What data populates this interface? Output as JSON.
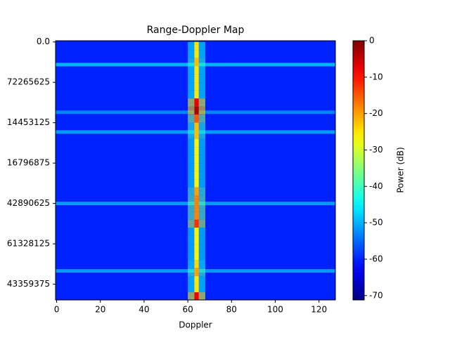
{
  "chart_data": {
    "type": "heatmap",
    "title": "Range-Doppler Map",
    "x_label": "Doppler",
    "colorbar_label": "Power (dB)",
    "xlim": [
      -0.5,
      127.5
    ],
    "xticks": [
      0,
      20,
      40,
      60,
      80,
      100,
      120
    ],
    "ylim": [
      -0.03,
      6.39
    ],
    "y_inverted": true,
    "yticks": [
      {
        "value": 0,
        "label": "0.0"
      },
      {
        "value": 1,
        "label": "72265625"
      },
      {
        "value": 2,
        "label": "14453125"
      },
      {
        "value": 3,
        "label": "16796875"
      },
      {
        "value": 4,
        "label": "42890625"
      },
      {
        "value": 5,
        "label": "61328125"
      },
      {
        "value": 6,
        "label": "43359375"
      }
    ],
    "clim": [
      -71.2,
      0
    ],
    "cticks": [
      0,
      -10,
      -20,
      -30,
      -40,
      -50,
      -60,
      -70
    ],
    "colormap": "jet",
    "background": -60,
    "stripe": {
      "x": 64,
      "width": 2,
      "range_bins": [
        0,
        0.2,
        0.4,
        0.6,
        0.8,
        1,
        1.2,
        1.4,
        1.6,
        1.8,
        2,
        2.2,
        2.4,
        2.6,
        2.8,
        3,
        3.2,
        3.4,
        3.6,
        3.8,
        4,
        4.2,
        4.4,
        4.6,
        4.8,
        5,
        5.2,
        5.4,
        5.6,
        5.8,
        6,
        6.2,
        6.39
      ],
      "values": [
        -25,
        -25,
        -22,
        -25,
        -25,
        -25,
        -25,
        -8,
        -3,
        -15,
        -22,
        -22,
        -26,
        -26,
        -26,
        -26,
        -26,
        -26,
        -20,
        -18,
        -18,
        -18,
        -12,
        -26,
        -26,
        -26,
        -26,
        -24,
        -20,
        -25,
        -25,
        -8
      ]
    },
    "streaks": [
      {
        "y": 0.56,
        "power": -48
      },
      {
        "y": 1.74,
        "power": -52
      },
      {
        "y": 2.23,
        "power": -50
      },
      {
        "y": 4.0,
        "power": -50
      },
      {
        "y": 5.67,
        "power": -50
      }
    ]
  }
}
